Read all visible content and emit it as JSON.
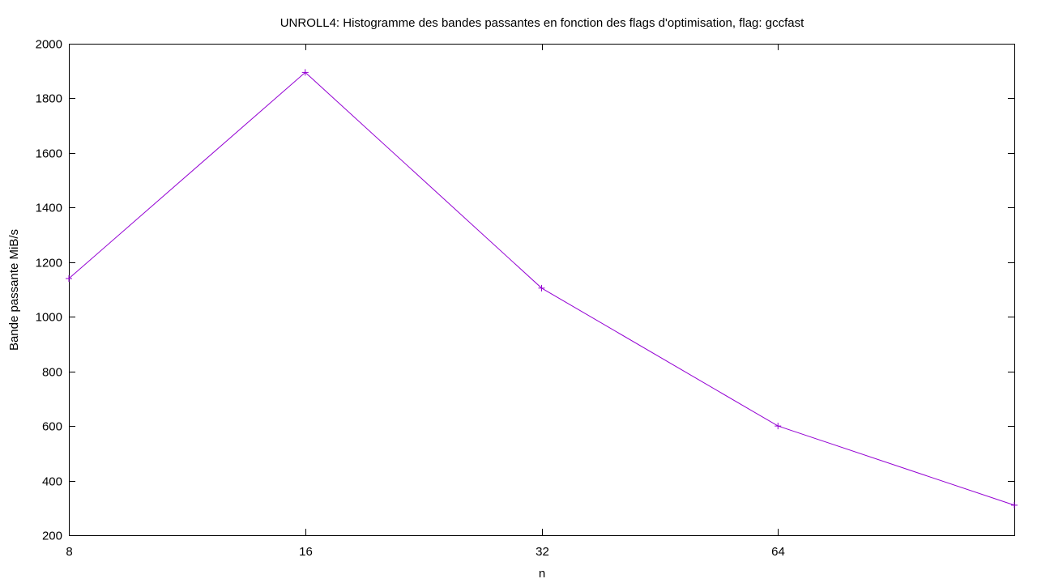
{
  "chart_data": {
    "type": "line",
    "title": "UNROLL4: Histogramme des bandes passantes en fonction des flags d'optimisation, flag: gccfast",
    "xlabel": "n",
    "ylabel": "Bande passante MiB/s",
    "x_ticks": [
      "8",
      "16",
      "32",
      "64"
    ],
    "y_ticks": [
      200,
      400,
      600,
      800,
      1000,
      1200,
      1400,
      1600,
      1800,
      2000
    ],
    "ylim": [
      200,
      2000
    ],
    "x_scale": "log2",
    "grid": false,
    "marker": "plus",
    "line_color": "#9400d3",
    "series": [
      {
        "x": [
          8,
          16,
          32,
          64,
          128
        ],
        "values": [
          1140,
          1895,
          1105,
          600,
          310
        ]
      }
    ]
  }
}
